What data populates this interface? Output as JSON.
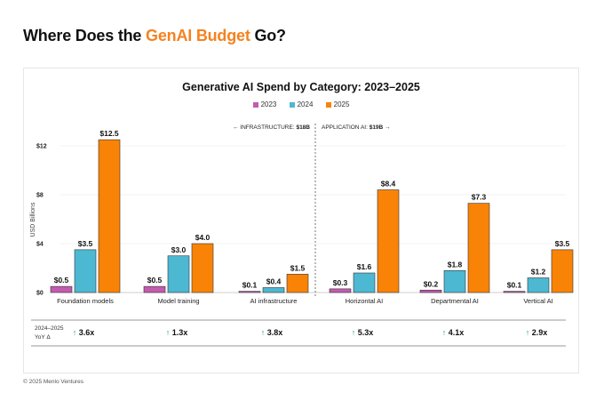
{
  "page_title_prefix": "Where Does the ",
  "page_title_highlight": "GenAI Budget",
  "page_title_suffix": " Go?",
  "footer": {
    "copyright": "© 2025 Menlo Ventures"
  },
  "chart_data": {
    "type": "bar",
    "title": "Generative AI Spend by Category: 2023–2025",
    "ylabel": "USD Billions",
    "xlabel": "",
    "ylim": [
      0,
      14
    ],
    "yticks": [
      {
        "value": 0,
        "label": "$0"
      },
      {
        "value": 4,
        "label": "$4"
      },
      {
        "value": 8,
        "label": "$8"
      },
      {
        "value": 12,
        "label": "$12"
      }
    ],
    "categories": [
      "Foundation models",
      "Model training",
      "AI infrastructure",
      "Horizontal AI",
      "Departmental AI",
      "Vertical AI"
    ],
    "series": [
      {
        "name": "2023",
        "color": "#c45bb0",
        "values": [
          0.5,
          0.5,
          0.1,
          0.3,
          0.2,
          0.1
        ],
        "labels": [
          "$0.5",
          "$0.5",
          "$0.1",
          "$0.3",
          "$0.2",
          "$0.1"
        ]
      },
      {
        "name": "2024",
        "color": "#4db8d2",
        "values": [
          3.5,
          3.0,
          0.4,
          1.6,
          1.8,
          1.2
        ],
        "labels": [
          "$3.5",
          "$3.0",
          "$0.4",
          "$1.6",
          "$1.8",
          "$1.2"
        ]
      },
      {
        "name": "2025",
        "color": "#f98306",
        "values": [
          12.5,
          4.0,
          1.5,
          8.4,
          7.3,
          3.5
        ],
        "labels": [
          "$12.5",
          "$4.0",
          "$1.5",
          "$8.4",
          "$7.3",
          "$3.5"
        ]
      }
    ],
    "annotations": {
      "left": {
        "arrow": "←",
        "text": "INFRASTRUCTURE: ",
        "bold": "$18B"
      },
      "right": {
        "text": "APPLICATION AI: ",
        "bold": "$19B",
        "arrow": "→"
      }
    },
    "yoy": {
      "label_line1": "2024–2025",
      "label_line2": "YoY Δ",
      "arrow": "↑",
      "arrow_color": "#2ea44f",
      "values": [
        "3.6x",
        "1.3x",
        "3.8x",
        "5.3x",
        "4.1x",
        "2.9x"
      ]
    }
  }
}
